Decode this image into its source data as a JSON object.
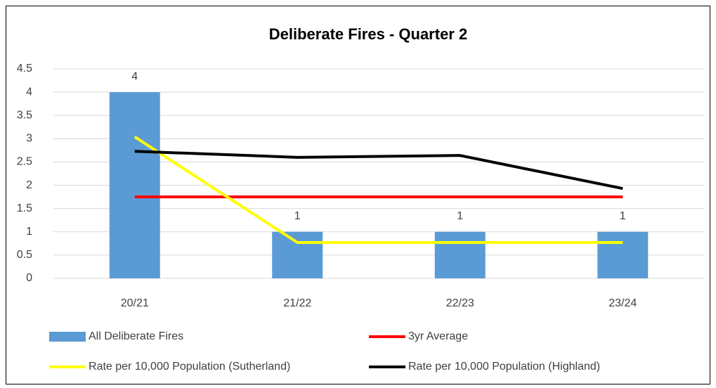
{
  "chart_data": {
    "type": "bar",
    "title": "Deliberate Fires - Quarter 2",
    "categories": [
      "20/21",
      "21/22",
      "22/23",
      "23/24"
    ],
    "series": [
      {
        "name": "All Deliberate Fires",
        "type": "bar",
        "color": "#5b9bd5",
        "values": [
          4,
          1,
          1,
          1
        ]
      },
      {
        "name": "3yr Average",
        "type": "line",
        "color": "#ff0000",
        "values": [
          1.75,
          1.75,
          1.75,
          1.75
        ]
      },
      {
        "name": "Rate per 10,000 Population (Sutherland)",
        "type": "line",
        "color": "#ffff00",
        "values": [
          3.04,
          0.77,
          0.77,
          0.77
        ]
      },
      {
        "name": "Rate per 10,000 Population (Highland)",
        "type": "line",
        "color": "#000000",
        "values": [
          2.73,
          2.6,
          2.64,
          1.93
        ]
      }
    ],
    "ylim": [
      0,
      4.5
    ],
    "yticks": [
      0,
      0.5,
      1,
      1.5,
      2,
      2.5,
      3,
      3.5,
      4,
      4.5
    ],
    "grid": true,
    "legend": "bottom"
  }
}
